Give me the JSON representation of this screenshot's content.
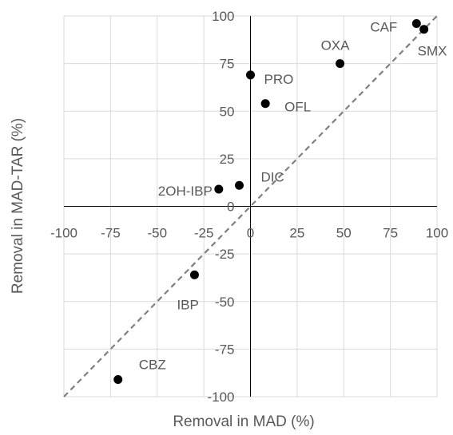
{
  "chart_data": {
    "type": "scatter",
    "title": "",
    "xlabel": "Removal in MAD (%)",
    "ylabel": "Removal in MAD-TAR (%)",
    "xlim": [
      -100,
      100
    ],
    "ylim": [
      -100,
      100
    ],
    "xticks": [
      "-100",
      "-75",
      "-50",
      "-25",
      "0",
      "25",
      "50",
      "75",
      "100"
    ],
    "yticks": [
      "100",
      "75",
      "50",
      "25",
      "0",
      "-25",
      "-50",
      "-75",
      "-100"
    ],
    "grid": true,
    "legend": "none",
    "reference_line": {
      "style": "dashed",
      "from": [
        -100,
        -100
      ],
      "to": [
        100,
        100
      ]
    },
    "marker_color": "#000000",
    "reference_color": "#7f7f7f",
    "points": [
      {
        "label": "CAF",
        "x": 89,
        "y": 96
      },
      {
        "label": "SMX",
        "x": 93,
        "y": 93
      },
      {
        "label": "OXA",
        "x": 48,
        "y": 75
      },
      {
        "label": "PRO",
        "x": 0,
        "y": 69
      },
      {
        "label": "OFL",
        "x": 8,
        "y": 54
      },
      {
        "label": "DIC",
        "x": -6,
        "y": 11
      },
      {
        "label": "2OH-IBP",
        "x": -17,
        "y": 9
      },
      {
        "label": "IBP",
        "x": -30,
        "y": -36
      },
      {
        "label": "CBZ",
        "x": -71,
        "y": -91
      }
    ]
  }
}
